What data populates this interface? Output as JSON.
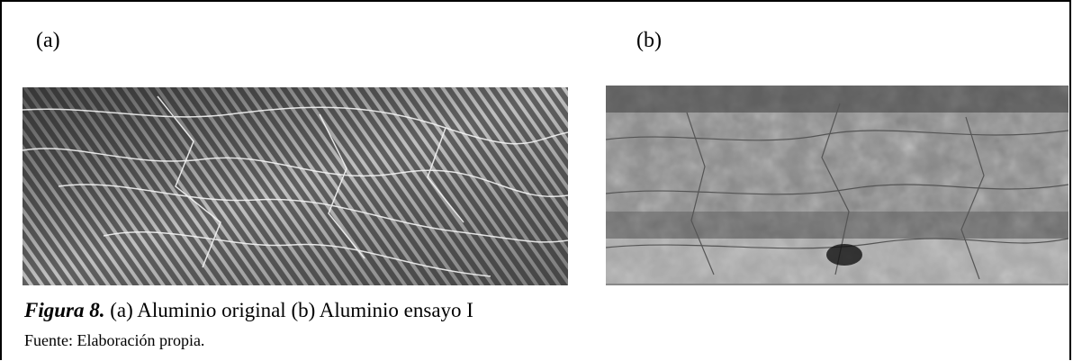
{
  "figure": {
    "label_a": "(a)",
    "label_b": "(b)",
    "caption_label": "Figura 8.",
    "caption_text": "(a) Aluminio original (b) Aluminio ensayo I",
    "source": "Fuente: Elaboración propia."
  }
}
